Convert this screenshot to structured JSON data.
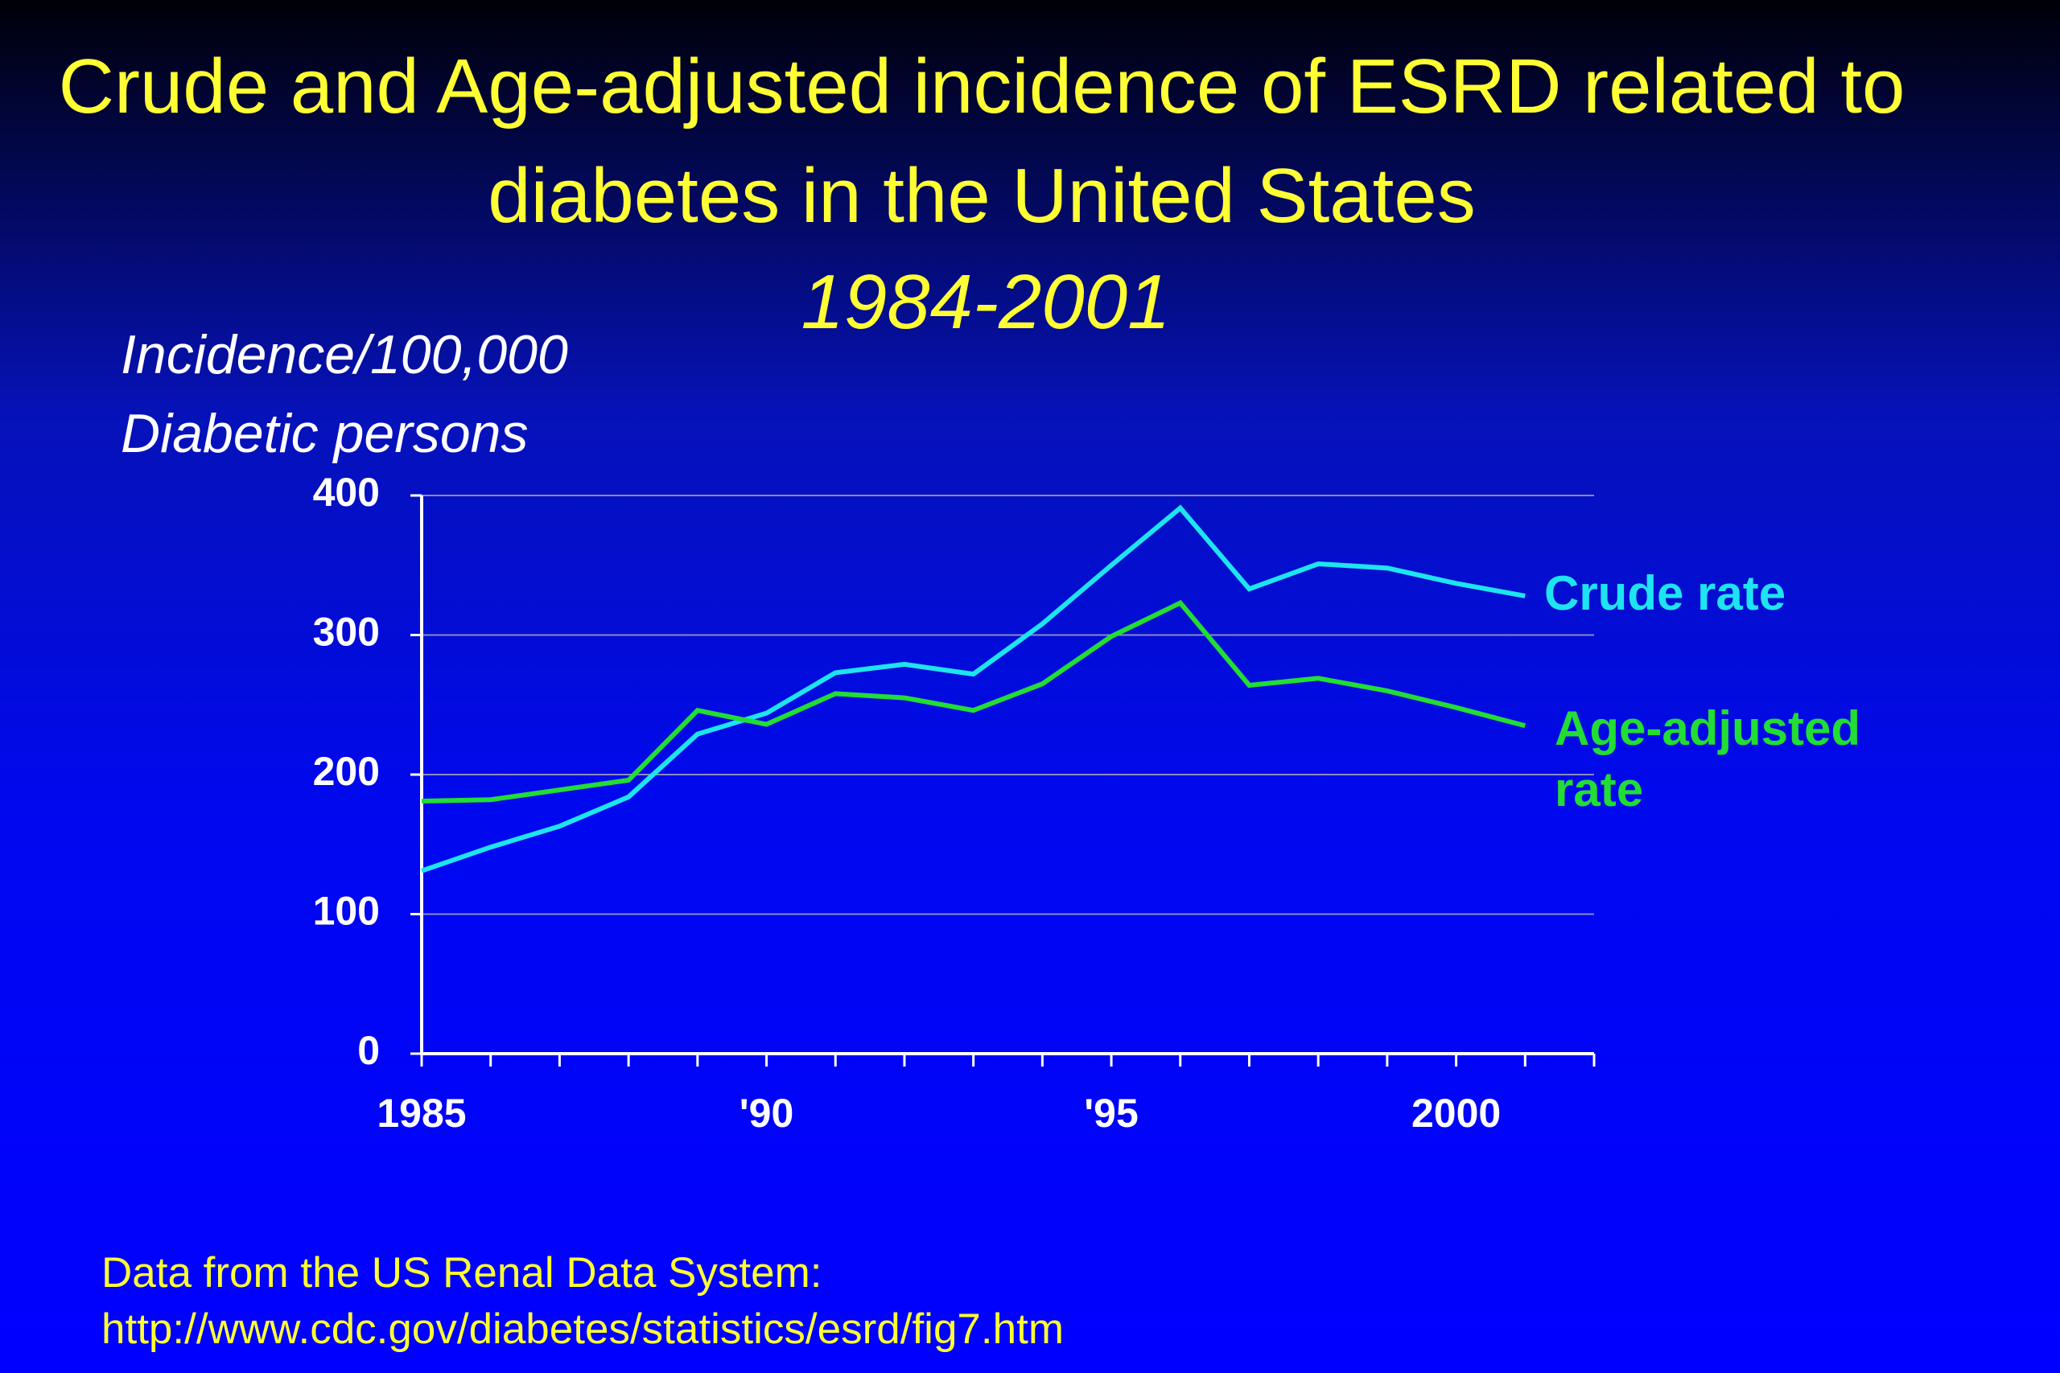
{
  "chart_data": {
    "type": "line",
    "title": "Crude and Age-adjusted incidence of ESRD related to diabetes in the United States",
    "subtitle": "1984-2001",
    "y_axis_label": "Incidence/100,000 Diabetic persons",
    "x": [
      1985,
      1986,
      1987,
      1988,
      1989,
      1990,
      1991,
      1992,
      1993,
      1994,
      1995,
      1996,
      1997,
      1998,
      1999,
      2000,
      2001
    ],
    "series": [
      {
        "name": "Crude rate",
        "color": "#1ee4f2",
        "values": [
          131,
          148,
          163,
          184,
          229,
          244,
          273,
          279,
          272,
          308,
          350,
          391,
          333,
          351,
          348,
          337,
          328
        ]
      },
      {
        "name": "Age-adjusted rate",
        "color": "#22dd33",
        "values": [
          181,
          182,
          189,
          196,
          246,
          236,
          258,
          255,
          246,
          265,
          299,
          323,
          264,
          269,
          260,
          248,
          235
        ]
      }
    ],
    "xlim": [
      1985,
      2002
    ],
    "xticks": [
      1985,
      {
        "value": 1990,
        "label": "'90"
      },
      {
        "value": 1995,
        "label": "'95"
      },
      2000
    ],
    "xminorticks": [
      1985,
      1986,
      1987,
      1988,
      1989,
      1990,
      1991,
      1992,
      1993,
      1994,
      1995,
      1996,
      1997,
      1998,
      1999,
      2000,
      2001,
      2002
    ],
    "ylim": [
      0,
      400
    ],
    "yticks": [
      0,
      100,
      200,
      300,
      400
    ],
    "grid": true,
    "source": "Data from the US Renal Data System:",
    "source_url": "http://www.cdc.gov/diabetes/statistics/esrd/fig7.htm"
  }
}
